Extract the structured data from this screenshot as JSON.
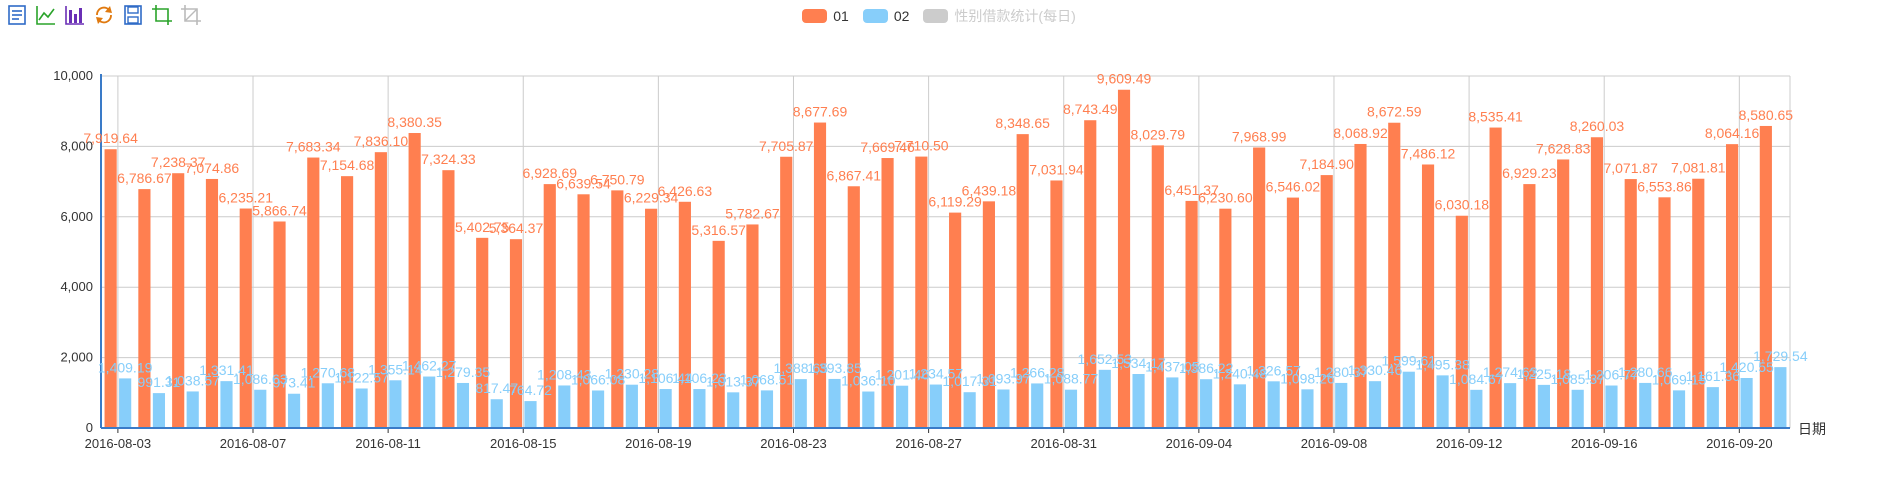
{
  "toolbox": [
    {
      "name": "data-view-icon",
      "color": "#2f6bc7"
    },
    {
      "name": "line-chart-icon",
      "color": "#2aa32a"
    },
    {
      "name": "bar-chart-icon",
      "color": "#6a2fb5"
    },
    {
      "name": "restore-icon",
      "color": "#e07a10"
    },
    {
      "name": "save-image-icon",
      "color": "#2f6bc7"
    },
    {
      "name": "zoom-icon",
      "color": "#2aa32a"
    },
    {
      "name": "zoom-reset-icon",
      "color": "#bbbbbb"
    }
  ],
  "legend": [
    {
      "label": "01",
      "color": "#ff7f50",
      "active": true
    },
    {
      "label": "02",
      "color": "#87cefa",
      "active": true
    },
    {
      "label": "性别借款统计(每日)",
      "color": "#cccccc",
      "active": false
    }
  ],
  "chart_data": {
    "type": "bar",
    "xlabel": "日期",
    "ylabel": "",
    "ylim": [
      0,
      10000
    ],
    "yticks": [
      "0",
      "2,000",
      "4,000",
      "6,000",
      "8,000",
      "10,000"
    ],
    "grid": true,
    "categories": [
      "2016-08-03",
      "2016-08-04",
      "2016-08-05",
      "2016-08-06",
      "2016-08-07",
      "2016-08-08",
      "2016-08-09",
      "2016-08-10",
      "2016-08-11",
      "2016-08-12",
      "2016-08-13",
      "2016-08-14",
      "2016-08-15",
      "2016-08-16",
      "2016-08-17",
      "2016-08-18",
      "2016-08-19",
      "2016-08-20",
      "2016-08-21",
      "2016-08-22",
      "2016-08-23",
      "2016-08-24",
      "2016-08-25",
      "2016-08-26",
      "2016-08-27",
      "2016-08-28",
      "2016-08-29",
      "2016-08-30",
      "2016-08-31",
      "2016-09-01",
      "2016-09-02",
      "2016-09-03",
      "2016-09-04",
      "2016-09-05",
      "2016-09-06",
      "2016-09-07",
      "2016-09-08",
      "2016-09-09",
      "2016-09-10",
      "2016-09-11",
      "2016-09-12",
      "2016-09-13",
      "2016-09-14",
      "2016-09-15",
      "2016-09-16",
      "2016-09-17",
      "2016-09-18",
      "2016-09-19",
      "2016-09-20",
      "2016-09-21"
    ],
    "x_tick_labels": [
      "2016-08-03",
      "2016-08-07",
      "2016-08-11",
      "2016-08-15",
      "2016-08-19",
      "2016-08-23",
      "2016-08-27",
      "2016-08-31",
      "2016-09-04",
      "2016-09-08",
      "2016-09-12",
      "2016-09-16",
      "2016-09-20"
    ],
    "series": [
      {
        "name": "01",
        "color": "#ff7f50",
        "values": [
          7919.64,
          6786.67,
          7238.37,
          7074.86,
          6235.21,
          5866.74,
          7683.34,
          7154.68,
          7836.1,
          8380.35,
          7324.33,
          5402.75,
          5364.37,
          6928.69,
          6639.54,
          6750.79,
          6229.34,
          6426.63,
          5316.57,
          5782.67,
          7705.87,
          8677.69,
          6867.41,
          7669.46,
          7710.5,
          6119.29,
          6439.18,
          8348.65,
          7031.94,
          8743.49,
          9609.49,
          8029.79,
          6451.37,
          6230.6,
          7968.99,
          6546.02,
          7184.9,
          8068.92,
          8672.59,
          7486.12,
          6030.18,
          8535.41,
          6929.23,
          7628.83,
          8260.03,
          7071.87,
          6553.86,
          7081.81,
          8064.16,
          8580.65
        ],
        "labels": [
          "7,919.64",
          "6,786.67",
          "7,238.37",
          "7,074.86",
          "6,235.21",
          "5,866.74",
          "7,683.34",
          "7,154.68",
          "7,836.10",
          "8,380.35",
          "7,324.33",
          "5,402.75",
          "5,364.37",
          "6,928.69",
          "6,639.54",
          "6,750.79",
          "6,229.34",
          "6,426.63",
          "5,316.57",
          "5,782.67",
          "7,705.87",
          "8,677.69",
          "6,867.41",
          "7,669.46",
          "7,710.50",
          "6,119.29",
          "6,439.18",
          "8,348.65",
          "7,031.94",
          "8,743.49",
          "9,609.49",
          "8,029.79",
          "6,451.37",
          "6,230.60",
          "7,968.99",
          "6,546.02",
          "7,184.90",
          "8,068.92",
          "8,672.59",
          "7,486.12",
          "6,030.18",
          "8,535.41",
          "6,929.23",
          "7,628.83",
          "8,260.03",
          "7,071.87",
          "6,553.86",
          "7,081.81",
          "8,064.16",
          "8,580.65"
        ]
      },
      {
        "name": "02",
        "color": "#87cefa",
        "values": [
          1409.19,
          991.31,
          1038.57,
          1331.41,
          1086.63,
          973.41,
          1270.68,
          1122.57,
          1355.14,
          1462.27,
          1279.35,
          817.47,
          764.72,
          1208.43,
          1066.08,
          1230.28,
          1106.44,
          1106.23,
          1013.37,
          1068.51,
          1388.65,
          1393.85,
          1036.1,
          1201.46,
          1234.57,
          1017.31,
          1093.97,
          1266.28,
          1088.77,
          1652.53,
          1534.17,
          1437.05,
          1386.22,
          1240.48,
          1326.57,
          1098.26,
          1280.37,
          1330.46,
          1599.61,
          1495.38,
          1084.67,
          1274.63,
          1225.18,
          1085.37,
          1206.77,
          1280.66,
          1069.15,
          1161.36,
          1420.55,
          1729.54
        ],
        "labels": [
          "1,409.19",
          "991.31",
          "1,038.57",
          "1,331.41",
          "1,086.63",
          "973.41",
          "1,270.68",
          "1,122.57",
          "1,355.14",
          "1,462.27",
          "1,279.35",
          "817.47",
          "764.72",
          "1,208.43",
          "1,066.08",
          "1,230.28",
          "1,106.44",
          "1,106.23",
          "1,013.37",
          "1,068.51",
          "1,388.65",
          "1,393.85",
          "1,036.10",
          "1,201.46",
          "1,234.57",
          "1,017.31",
          "1,093.97",
          "1,266.28",
          "1,088.77",
          "1,652.53",
          "1,534.17",
          "1,437.05",
          "1,386.22",
          "1,240.48",
          "1,326.57",
          "1,098.26",
          "1,280.37",
          "1,330.46",
          "1,599.61",
          "1,495.38",
          "1,084.67",
          "1,274.63",
          "1,225.18",
          "1,085.37",
          "1,206.77",
          "1,280.66",
          "1,069.15",
          "1,161.36",
          "1,420.55",
          "1,729.54"
        ]
      }
    ]
  }
}
